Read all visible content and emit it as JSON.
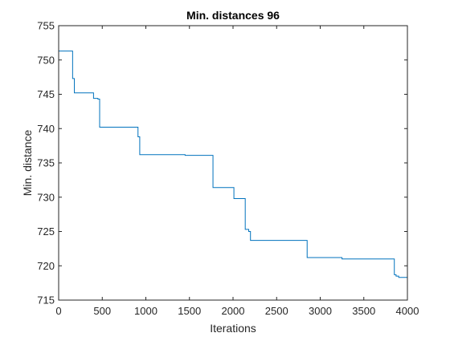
{
  "chart_data": {
    "type": "line",
    "title": "Min. distances 96",
    "xlabel": "Iterations",
    "ylabel": "Min. distance",
    "xlim": [
      0,
      4000
    ],
    "ylim": [
      715,
      755
    ],
    "xticks": [
      0,
      500,
      1000,
      1500,
      2000,
      2500,
      3000,
      3500,
      4000
    ],
    "yticks": [
      715,
      720,
      725,
      730,
      735,
      740,
      745,
      750,
      755
    ],
    "grid": false,
    "line_color": "#0072BD",
    "step": true,
    "series": [
      {
        "x": [
          0,
          160,
          180,
          400,
          450,
          470,
          910,
          930,
          1450,
          1770,
          2010,
          2140,
          2180,
          2200,
          2850,
          3250,
          3850,
          3870,
          3900,
          4000
        ],
        "y": [
          751.3,
          747.3,
          745.2,
          744.4,
          744.3,
          740.2,
          738.8,
          736.2,
          736.1,
          731.4,
          729.8,
          725.3,
          725.0,
          723.7,
          721.2,
          721.0,
          718.7,
          718.5,
          718.3,
          718.3
        ]
      }
    ]
  }
}
